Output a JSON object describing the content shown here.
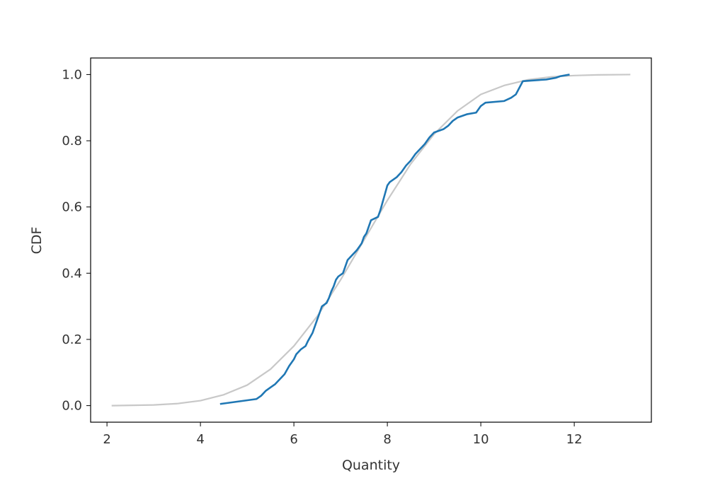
{
  "chart_data": {
    "type": "line",
    "title": "",
    "xlabel": "Quantity",
    "ylabel": "CDF",
    "xlim": [
      1.65,
      13.65
    ],
    "ylim": [
      -0.05,
      1.05
    ],
    "xticks": [
      2,
      4,
      6,
      8,
      10,
      12
    ],
    "xtick_labels": [
      "2",
      "4",
      "6",
      "8",
      "10",
      "12"
    ],
    "yticks": [
      0.0,
      0.2,
      0.4,
      0.6,
      0.8,
      1.0
    ],
    "ytick_labels": [
      "0.0",
      "0.2",
      "0.4",
      "0.6",
      "0.8",
      "1.0"
    ],
    "grid": false,
    "legend": "none",
    "series": [
      {
        "color": "#c8c8c8",
        "style": "smooth",
        "points": [
          [
            2.1,
            0.0
          ],
          [
            3.0,
            0.002
          ],
          [
            3.5,
            0.006
          ],
          [
            4.0,
            0.015
          ],
          [
            4.5,
            0.033
          ],
          [
            5.0,
            0.062
          ],
          [
            5.5,
            0.11
          ],
          [
            6.0,
            0.18
          ],
          [
            6.5,
            0.27
          ],
          [
            7.0,
            0.38
          ],
          [
            7.5,
            0.5
          ],
          [
            8.0,
            0.62
          ],
          [
            8.5,
            0.73
          ],
          [
            9.0,
            0.82
          ],
          [
            9.5,
            0.89
          ],
          [
            10.0,
            0.94
          ],
          [
            10.5,
            0.967
          ],
          [
            11.0,
            0.984
          ],
          [
            11.5,
            0.993
          ],
          [
            12.0,
            0.997
          ],
          [
            12.5,
            0.999
          ],
          [
            13.2,
            1.0
          ]
        ]
      },
      {
        "color": "#1f77b4",
        "style": "ecdf",
        "points": [
          [
            4.42,
            0.005
          ],
          [
            5.2,
            0.02
          ],
          [
            5.3,
            0.03
          ],
          [
            5.4,
            0.045
          ],
          [
            5.5,
            0.055
          ],
          [
            5.6,
            0.065
          ],
          [
            5.7,
            0.08
          ],
          [
            5.8,
            0.095
          ],
          [
            5.9,
            0.12
          ],
          [
            6.0,
            0.14
          ],
          [
            6.05,
            0.155
          ],
          [
            6.15,
            0.17
          ],
          [
            6.25,
            0.18
          ],
          [
            6.3,
            0.195
          ],
          [
            6.4,
            0.22
          ],
          [
            6.45,
            0.24
          ],
          [
            6.5,
            0.26
          ],
          [
            6.55,
            0.28
          ],
          [
            6.6,
            0.3
          ],
          [
            6.7,
            0.31
          ],
          [
            6.75,
            0.325
          ],
          [
            6.8,
            0.345
          ],
          [
            6.85,
            0.36
          ],
          [
            6.9,
            0.38
          ],
          [
            6.95,
            0.39
          ],
          [
            7.05,
            0.4
          ],
          [
            7.1,
            0.42
          ],
          [
            7.15,
            0.44
          ],
          [
            7.25,
            0.455
          ],
          [
            7.35,
            0.47
          ],
          [
            7.45,
            0.49
          ],
          [
            7.5,
            0.51
          ],
          [
            7.55,
            0.52
          ],
          [
            7.6,
            0.54
          ],
          [
            7.65,
            0.56
          ],
          [
            7.8,
            0.57
          ],
          [
            7.85,
            0.59
          ],
          [
            7.9,
            0.615
          ],
          [
            7.95,
            0.64
          ],
          [
            8.0,
            0.665
          ],
          [
            8.05,
            0.675
          ],
          [
            8.2,
            0.69
          ],
          [
            8.3,
            0.705
          ],
          [
            8.4,
            0.725
          ],
          [
            8.5,
            0.74
          ],
          [
            8.6,
            0.76
          ],
          [
            8.7,
            0.775
          ],
          [
            8.8,
            0.79
          ],
          [
            8.9,
            0.81
          ],
          [
            9.0,
            0.825
          ],
          [
            9.2,
            0.835
          ],
          [
            9.3,
            0.845
          ],
          [
            9.4,
            0.86
          ],
          [
            9.5,
            0.87
          ],
          [
            9.7,
            0.88
          ],
          [
            9.9,
            0.885
          ],
          [
            10.0,
            0.905
          ],
          [
            10.1,
            0.915
          ],
          [
            10.5,
            0.92
          ],
          [
            10.65,
            0.93
          ],
          [
            10.75,
            0.94
          ],
          [
            10.9,
            0.98
          ],
          [
            11.4,
            0.985
          ],
          [
            11.6,
            0.99
          ],
          [
            11.7,
            0.995
          ],
          [
            11.9,
            1.0
          ]
        ]
      }
    ]
  }
}
